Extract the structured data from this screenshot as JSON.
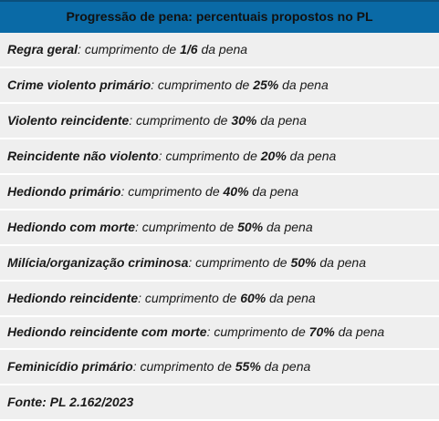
{
  "table": {
    "title": "Progressão de pena: percentuais propostos no PL",
    "connector": ": cumprimento de ",
    "suffix": " da pena",
    "rows": [
      {
        "label": "Regra geral",
        "value": "1/6"
      },
      {
        "label": "Crime violento primário",
        "value": "25%"
      },
      {
        "label": "Violento reincidente",
        "value": "30%"
      },
      {
        "label": "Reincidente não violento",
        "value": "20%"
      },
      {
        "label": "Hediondo primário",
        "value": "40%"
      },
      {
        "label": "Hediondo com morte",
        "value": "50%"
      },
      {
        "label": "Milícia/organização criminosa",
        "value": "50%"
      },
      {
        "label": "Hediondo reincidente",
        "value": "60%"
      },
      {
        "label": "Hediondo reincidente com morte",
        "value": "70%"
      },
      {
        "label": "Feminicídio primário",
        "value": "55%"
      }
    ],
    "source": "Fonte: PL 2.162/2023"
  }
}
